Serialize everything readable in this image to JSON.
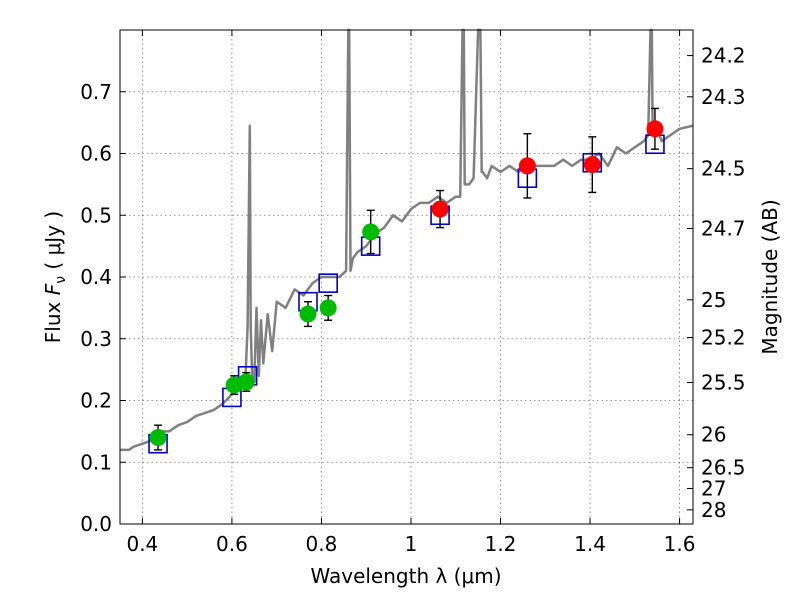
{
  "chart_data": {
    "type": "scatter",
    "xlabel": "Wavelength  λ (μm)",
    "ylabel": "Flux  F_ν  ( μJy )",
    "ylabel_parts": {
      "prefix": "Flux  ",
      "symbol": "F",
      "subscript": "ν",
      "suffix": "  ( μJy )"
    },
    "y2label": "Magnitude (AB)",
    "xlim": [
      0.35,
      1.63
    ],
    "ylim": [
      0.0,
      0.8
    ],
    "grid": true,
    "x_ticks": [
      "0.4",
      "0.6",
      "0.8",
      "1",
      "1.2",
      "1.4",
      "1.6"
    ],
    "y_ticks": [
      "0.0",
      "0.1",
      "0.2",
      "0.3",
      "0.4",
      "0.5",
      "0.6",
      "0.7"
    ],
    "magnitude_ticks": [
      "24.2",
      "24.3",
      "24.5",
      "24.7",
      "25",
      "25.2",
      "25.5",
      "26",
      "26.5",
      "27",
      "28"
    ],
    "colors": {
      "model": "#808080",
      "green_points": "#00bb00",
      "red_points": "#ff0000",
      "model_boxes": "#0000cc",
      "errorbars": "#000000"
    },
    "series": [
      {
        "kind": "model_spectrum",
        "x": [
          0.35,
          0.37,
          0.38,
          0.4,
          0.42,
          0.44,
          0.46,
          0.48,
          0.5,
          0.52,
          0.54,
          0.56,
          0.58,
          0.6,
          0.62,
          0.63,
          0.635,
          0.64,
          0.642,
          0.645,
          0.65,
          0.655,
          0.66,
          0.665,
          0.67,
          0.68,
          0.69,
          0.7,
          0.72,
          0.74,
          0.76,
          0.78,
          0.8,
          0.82,
          0.84,
          0.855,
          0.86,
          0.862,
          0.865,
          0.87,
          0.88,
          0.9,
          0.92,
          0.94,
          0.96,
          0.98,
          1.0,
          1.02,
          1.04,
          1.06,
          1.08,
          1.1,
          1.11,
          1.115,
          1.118,
          1.12,
          1.13,
          1.14,
          1.15,
          1.155,
          1.158,
          1.16,
          1.17,
          1.18,
          1.2,
          1.22,
          1.24,
          1.26,
          1.28,
          1.3,
          1.32,
          1.34,
          1.36,
          1.38,
          1.4,
          1.42,
          1.44,
          1.46,
          1.48,
          1.5,
          1.52,
          1.53,
          1.535,
          1.538,
          1.54,
          1.55,
          1.56,
          1.58,
          1.6,
          1.63
        ],
        "y": [
          0.12,
          0.12,
          0.125,
          0.13,
          0.135,
          0.15,
          0.15,
          0.16,
          0.165,
          0.175,
          0.18,
          0.185,
          0.195,
          0.21,
          0.22,
          0.23,
          0.32,
          0.645,
          0.32,
          0.24,
          0.23,
          0.35,
          0.24,
          0.33,
          0.26,
          0.34,
          0.28,
          0.36,
          0.35,
          0.38,
          0.37,
          0.39,
          0.4,
          0.4,
          0.4,
          0.41,
          0.8,
          0.8,
          0.41,
          0.43,
          0.44,
          0.45,
          0.47,
          0.48,
          0.5,
          0.49,
          0.51,
          0.52,
          0.52,
          0.53,
          0.52,
          0.53,
          0.53,
          0.8,
          0.8,
          0.55,
          0.55,
          0.56,
          0.8,
          0.8,
          0.57,
          0.57,
          0.56,
          0.58,
          0.57,
          0.58,
          0.57,
          0.58,
          0.58,
          0.58,
          0.58,
          0.59,
          0.58,
          0.59,
          0.59,
          0.6,
          0.58,
          0.61,
          0.6,
          0.61,
          0.62,
          0.63,
          0.8,
          0.8,
          0.63,
          0.64,
          0.62,
          0.63,
          0.64,
          0.645
        ]
      },
      {
        "kind": "model_boxes",
        "x": [
          0.435,
          0.6,
          0.635,
          0.77,
          0.815,
          0.91,
          1.065,
          1.26,
          1.405,
          1.545
        ],
        "y": [
          0.13,
          0.205,
          0.24,
          0.36,
          0.39,
          0.45,
          0.5,
          0.56,
          0.585,
          0.615
        ]
      },
      {
        "kind": "points",
        "color": "green",
        "x": [
          0.435,
          0.605,
          0.632,
          0.77,
          0.815,
          0.91
        ],
        "y": [
          0.14,
          0.225,
          0.23,
          0.34,
          0.35,
          0.473
        ],
        "err": [
          0.02,
          0.015,
          0.015,
          0.02,
          0.02,
          0.035
        ]
      },
      {
        "kind": "points",
        "color": "red",
        "x": [
          1.065,
          1.26,
          1.405,
          1.545
        ],
        "y": [
          0.51,
          0.58,
          0.582,
          0.64
        ],
        "err": [
          0.03,
          0.052,
          0.045,
          0.033
        ]
      }
    ]
  }
}
